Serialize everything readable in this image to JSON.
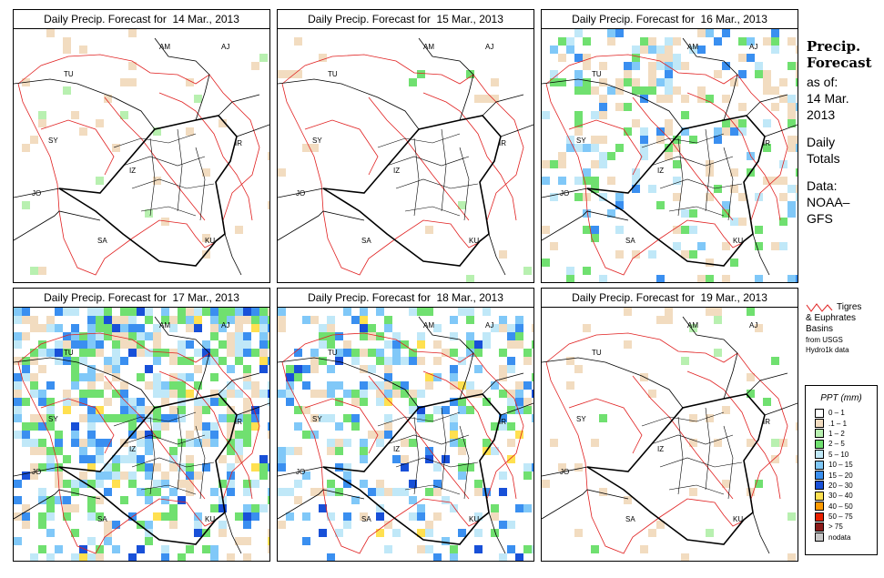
{
  "panel_title_prefix": "Daily Precip. Forecast for",
  "panels": [
    {
      "date": "14 Mar., 2013",
      "wet": 0.05
    },
    {
      "date": "15 Mar., 2013",
      "wet": 0.04
    },
    {
      "date": "16 Mar., 2013",
      "wet": 0.35
    },
    {
      "date": "17 Mar., 2013",
      "wet": 0.75
    },
    {
      "date": "18 Mar., 2013",
      "wet": 0.5
    },
    {
      "date": "19 Mar., 2013",
      "wet": 0.08
    }
  ],
  "map_labels": [
    "AM",
    "AJ",
    "TU",
    "SY",
    "IR",
    "JO",
    "SA",
    "KU",
    "IZ"
  ],
  "sidebar": {
    "title_line1": "Precip.",
    "title_line2": "Forecast",
    "asof_label": "as of:",
    "asof_line1": "14 Mar.",
    "asof_line2": "2013",
    "totals_line1": "Daily",
    "totals_line2": "Totals",
    "source_line1": "Data:",
    "source_line2": "NOAA–",
    "source_line3": "GFS"
  },
  "basin_note": {
    "line1": "Tigres",
    "line2": "& Euphrates",
    "line3": "Basins",
    "line4": "from USGS",
    "line5": "Hydro1k data"
  },
  "legend": {
    "title": "PPT (mm)",
    "classes": [
      {
        "label": "0 – 1",
        "color": "#ffffff"
      },
      {
        "label": ".1 – 1",
        "color": "#f2dcc0"
      },
      {
        "label": "1 – 2",
        "color": "#b8f0b0"
      },
      {
        "label": "2 – 5",
        "color": "#70e070"
      },
      {
        "label": "5 – 10",
        "color": "#c0e8f8"
      },
      {
        "label": "10 – 15",
        "color": "#80c8f8"
      },
      {
        "label": "15 – 20",
        "color": "#3a8ff0"
      },
      {
        "label": "20 – 30",
        "color": "#1850d8"
      },
      {
        "label": "30 – 40",
        "color": "#ffe050"
      },
      {
        "label": "40 – 50",
        "color": "#ff9a00"
      },
      {
        "label": "50 – 75",
        "color": "#e82000"
      },
      {
        "label": "> 75",
        "color": "#8b1a1a"
      },
      {
        "label": "nodata",
        "color": "#c8c8c8"
      }
    ]
  },
  "colors": {
    "basin_outline": "#e02020",
    "border": "#000000"
  }
}
